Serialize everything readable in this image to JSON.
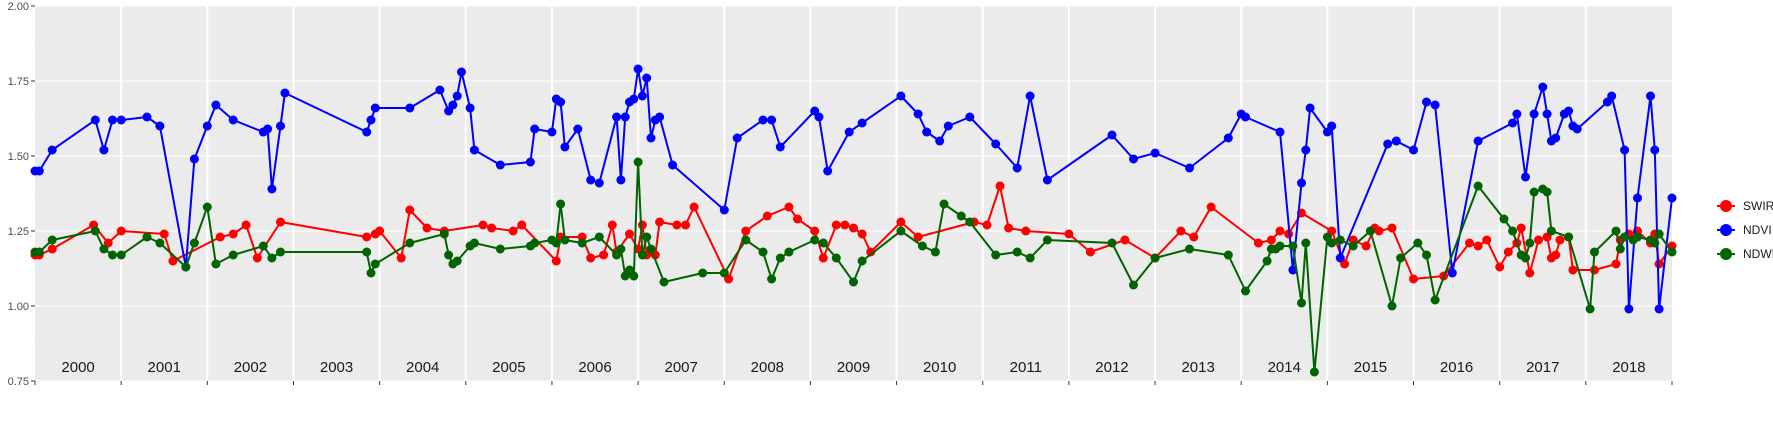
{
  "chart_data": {
    "type": "line",
    "title": "",
    "xlabel": "",
    "ylabel": "",
    "ylim": [
      0.75,
      2.0
    ],
    "xlim": [
      2000.0,
      2019.0
    ],
    "y_ticks": [
      "0.75",
      "1.00",
      "1.25",
      "1.50",
      "1.75",
      "2.00"
    ],
    "year_labels": [
      "2000",
      "2001",
      "2002",
      "2003",
      "2004",
      "2005",
      "2006",
      "2007",
      "2008",
      "2009",
      "2010",
      "2011",
      "2012",
      "2013",
      "2014",
      "2015",
      "2016",
      "2017",
      "2018"
    ],
    "grid": true,
    "legend_position": "right",
    "series": [
      {
        "name": "SWIR",
        "color": "#ff0000",
        "x": [
          2000.0,
          2000.05,
          2000.2,
          2000.68,
          2000.85,
          2001.0,
          2001.5,
          2001.6,
          2002.15,
          2002.3,
          2002.45,
          2002.58,
          2002.85,
          2003.85,
          2003.95,
          2004.0,
          2004.25,
          2004.35,
          2004.55,
          2004.75,
          2005.2,
          2005.3,
          2005.55,
          2005.65,
          2006.05,
          2006.1,
          2006.35,
          2006.45,
          2006.6,
          2006.7,
          2006.75,
          2006.9,
          2007.0,
          2007.05,
          2007.1,
          2007.2,
          2007.25,
          2007.45,
          2007.55,
          2007.65,
          2008.05,
          2008.25,
          2008.5,
          2008.75,
          2008.85,
          2009.05,
          2009.15,
          2009.3,
          2009.4,
          2009.5,
          2009.6,
          2009.7,
          2010.05,
          2010.25,
          2010.9,
          2011.05,
          2011.2,
          2011.3,
          2011.5,
          2012.0,
          2012.25,
          2012.65,
          2013.0,
          2013.3,
          2013.45,
          2013.65,
          2014.2,
          2014.35,
          2014.45,
          2014.55,
          2014.7,
          2015.05,
          2015.2,
          2015.3,
          2015.45,
          2015.55,
          2015.6,
          2015.75,
          2016.0,
          2016.35,
          2016.65,
          2016.75,
          2016.85,
          2017.0,
          2017.1,
          2017.2,
          2017.25,
          2017.35,
          2017.45,
          2017.55,
          2017.6,
          2017.65,
          2017.7,
          2017.8,
          2017.85,
          2018.1,
          2018.35,
          2018.4,
          2018.5,
          2018.6,
          2018.75,
          2018.8,
          2018.85,
          2019.0
        ],
        "values": [
          1.17,
          1.17,
          1.19,
          1.27,
          1.21,
          1.25,
          1.24,
          1.15,
          1.23,
          1.24,
          1.27,
          1.16,
          1.28,
          1.23,
          1.24,
          1.25,
          1.16,
          1.32,
          1.26,
          1.25,
          1.27,
          1.26,
          1.25,
          1.27,
          1.15,
          1.23,
          1.23,
          1.16,
          1.17,
          1.27,
          1.18,
          1.24,
          1.19,
          1.27,
          1.17,
          1.17,
          1.28,
          1.27,
          1.27,
          1.33,
          1.09,
          1.25,
          1.3,
          1.33,
          1.29,
          1.25,
          1.16,
          1.27,
          1.27,
          1.26,
          1.24,
          1.18,
          1.28,
          1.23,
          1.28,
          1.27,
          1.4,
          1.26,
          1.25,
          1.24,
          1.18,
          1.22,
          1.16,
          1.25,
          1.23,
          1.33,
          1.21,
          1.22,
          1.25,
          1.24,
          1.31,
          1.25,
          1.14,
          1.22,
          1.2,
          1.26,
          1.25,
          1.26,
          1.09,
          1.1,
          1.21,
          1.2,
          1.22,
          1.13,
          1.18,
          1.21,
          1.26,
          1.11,
          1.22,
          1.23,
          1.16,
          1.17,
          1.22,
          1.23,
          1.12,
          1.12,
          1.14,
          1.22,
          1.24,
          1.25,
          1.21,
          1.24,
          1.14,
          1.2
        ]
      },
      {
        "name": "NDVI",
        "color": "#0000ff",
        "x": [
          2000.0,
          2000.05,
          2000.2,
          2000.7,
          2000.8,
          2000.9,
          2001.0,
          2001.3,
          2001.45,
          2001.75,
          2001.85,
          2002.0,
          2002.1,
          2002.3,
          2002.65,
          2002.7,
          2002.75,
          2002.85,
          2002.9,
          2003.85,
          2003.9,
          2003.95,
          2004.35,
          2004.7,
          2004.8,
          2004.85,
          2004.9,
          2004.95,
          2005.05,
          2005.1,
          2005.4,
          2005.75,
          2005.8,
          2006.0,
          2006.05,
          2006.1,
          2006.15,
          2006.3,
          2006.45,
          2006.55,
          2006.75,
          2006.8,
          2006.85,
          2006.9,
          2006.95,
          2007.0,
          2007.05,
          2007.1,
          2007.15,
          2007.2,
          2007.25,
          2007.4,
          2008.0,
          2008.15,
          2008.45,
          2008.55,
          2008.65,
          2009.05,
          2009.1,
          2009.2,
          2009.45,
          2009.6,
          2010.05,
          2010.25,
          2010.35,
          2010.5,
          2010.6,
          2010.85,
          2011.15,
          2011.4,
          2011.55,
          2011.75,
          2012.5,
          2012.75,
          2013.0,
          2013.4,
          2013.85,
          2014.0,
          2014.05,
          2014.45,
          2014.6,
          2014.7,
          2014.75,
          2014.8,
          2015.0,
          2015.05,
          2015.15,
          2015.7,
          2015.8,
          2016.0,
          2016.15,
          2016.25,
          2016.45,
          2016.75,
          2017.15,
          2017.2,
          2017.3,
          2017.4,
          2017.5,
          2017.55,
          2017.6,
          2017.65,
          2017.75,
          2017.8,
          2017.85,
          2017.9,
          2018.25,
          2018.3,
          2018.45,
          2018.5,
          2018.6,
          2018.75,
          2018.8,
          2018.85,
          2019.0
        ],
        "values": [
          1.45,
          1.45,
          1.52,
          1.62,
          1.52,
          1.62,
          1.62,
          1.63,
          1.6,
          1.13,
          1.49,
          1.6,
          1.67,
          1.62,
          1.58,
          1.59,
          1.39,
          1.6,
          1.71,
          1.58,
          1.62,
          1.66,
          1.66,
          1.72,
          1.65,
          1.67,
          1.7,
          1.78,
          1.66,
          1.52,
          1.47,
          1.48,
          1.59,
          1.58,
          1.69,
          1.68,
          1.53,
          1.59,
          1.42,
          1.41,
          1.63,
          1.42,
          1.63,
          1.68,
          1.69,
          1.79,
          1.7,
          1.76,
          1.56,
          1.62,
          1.63,
          1.47,
          1.32,
          1.56,
          1.62,
          1.62,
          1.53,
          1.65,
          1.63,
          1.45,
          1.58,
          1.61,
          1.7,
          1.64,
          1.58,
          1.55,
          1.6,
          1.63,
          1.54,
          1.46,
          1.7,
          1.42,
          1.57,
          1.49,
          1.51,
          1.46,
          1.56,
          1.64,
          1.63,
          1.58,
          1.12,
          1.41,
          1.52,
          1.66,
          1.58,
          1.6,
          1.16,
          1.54,
          1.55,
          1.52,
          1.68,
          1.67,
          1.11,
          1.55,
          1.61,
          1.64,
          1.43,
          1.64,
          1.73,
          1.64,
          1.55,
          1.56,
          1.64,
          1.65,
          1.6,
          1.59,
          1.68,
          1.7,
          1.52,
          0.99,
          1.36,
          1.7,
          1.52,
          0.99,
          1.36
        ]
      },
      {
        "name": "NDWI",
        "color": "#006400",
        "x": [
          2000.0,
          2000.05,
          2000.2,
          2000.7,
          2000.8,
          2000.9,
          2001.0,
          2001.3,
          2001.45,
          2001.75,
          2001.85,
          2002.0,
          2002.1,
          2002.3,
          2002.65,
          2002.75,
          2002.85,
          2003.85,
          2003.9,
          2003.95,
          2004.35,
          2004.75,
          2004.8,
          2004.85,
          2004.9,
          2005.05,
          2005.1,
          2005.4,
          2005.75,
          2005.8,
          2006.0,
          2006.05,
          2006.1,
          2006.15,
          2006.35,
          2006.55,
          2006.75,
          2006.8,
          2006.85,
          2006.9,
          2006.95,
          2007.0,
          2007.05,
          2007.1,
          2007.15,
          2007.3,
          2007.75,
          2008.0,
          2008.25,
          2008.45,
          2008.55,
          2008.65,
          2008.75,
          2009.05,
          2009.15,
          2009.3,
          2009.5,
          2009.6,
          2010.05,
          2010.3,
          2010.45,
          2010.55,
          2010.75,
          2010.85,
          2011.15,
          2011.4,
          2011.55,
          2011.75,
          2012.5,
          2012.75,
          2013.0,
          2013.4,
          2013.85,
          2014.05,
          2014.3,
          2014.35,
          2014.4,
          2014.45,
          2014.6,
          2014.7,
          2014.75,
          2014.85,
          2015.0,
          2015.05,
          2015.15,
          2015.3,
          2015.5,
          2015.75,
          2015.85,
          2016.05,
          2016.15,
          2016.25,
          2016.75,
          2017.05,
          2017.15,
          2017.25,
          2017.3,
          2017.35,
          2017.4,
          2017.5,
          2017.55,
          2017.6,
          2017.8,
          2018.05,
          2018.1,
          2018.35,
          2018.4,
          2018.45,
          2018.55,
          2018.6,
          2018.75,
          2018.8,
          2018.85,
          2019.0
        ],
        "values": [
          1.18,
          1.18,
          1.22,
          1.25,
          1.19,
          1.17,
          1.17,
          1.23,
          1.21,
          1.13,
          1.21,
          1.33,
          1.14,
          1.17,
          1.2,
          1.16,
          1.18,
          1.18,
          1.11,
          1.14,
          1.21,
          1.24,
          1.17,
          1.14,
          1.15,
          1.2,
          1.21,
          1.19,
          1.2,
          1.21,
          1.22,
          1.21,
          1.34,
          1.22,
          1.21,
          1.23,
          1.17,
          1.19,
          1.1,
          1.12,
          1.1,
          1.48,
          1.17,
          1.23,
          1.19,
          1.08,
          1.11,
          1.11,
          1.22,
          1.18,
          1.09,
          1.16,
          1.18,
          1.22,
          1.21,
          1.16,
          1.08,
          1.15,
          1.25,
          1.2,
          1.18,
          1.34,
          1.3,
          1.28,
          1.17,
          1.18,
          1.16,
          1.22,
          1.21,
          1.07,
          1.16,
          1.19,
          1.17,
          1.05,
          1.15,
          1.19,
          1.19,
          1.2,
          1.2,
          1.01,
          1.21,
          0.78,
          1.23,
          1.21,
          1.22,
          1.2,
          1.25,
          1.0,
          1.16,
          1.21,
          1.17,
          1.02,
          1.4,
          1.29,
          1.25,
          1.17,
          1.16,
          1.21,
          1.38,
          1.39,
          1.38,
          1.25,
          1.23,
          0.99,
          1.18,
          1.25,
          1.19,
          1.23,
          1.22,
          1.23,
          1.22,
          1.21,
          1.24,
          1.18
        ]
      }
    ]
  }
}
